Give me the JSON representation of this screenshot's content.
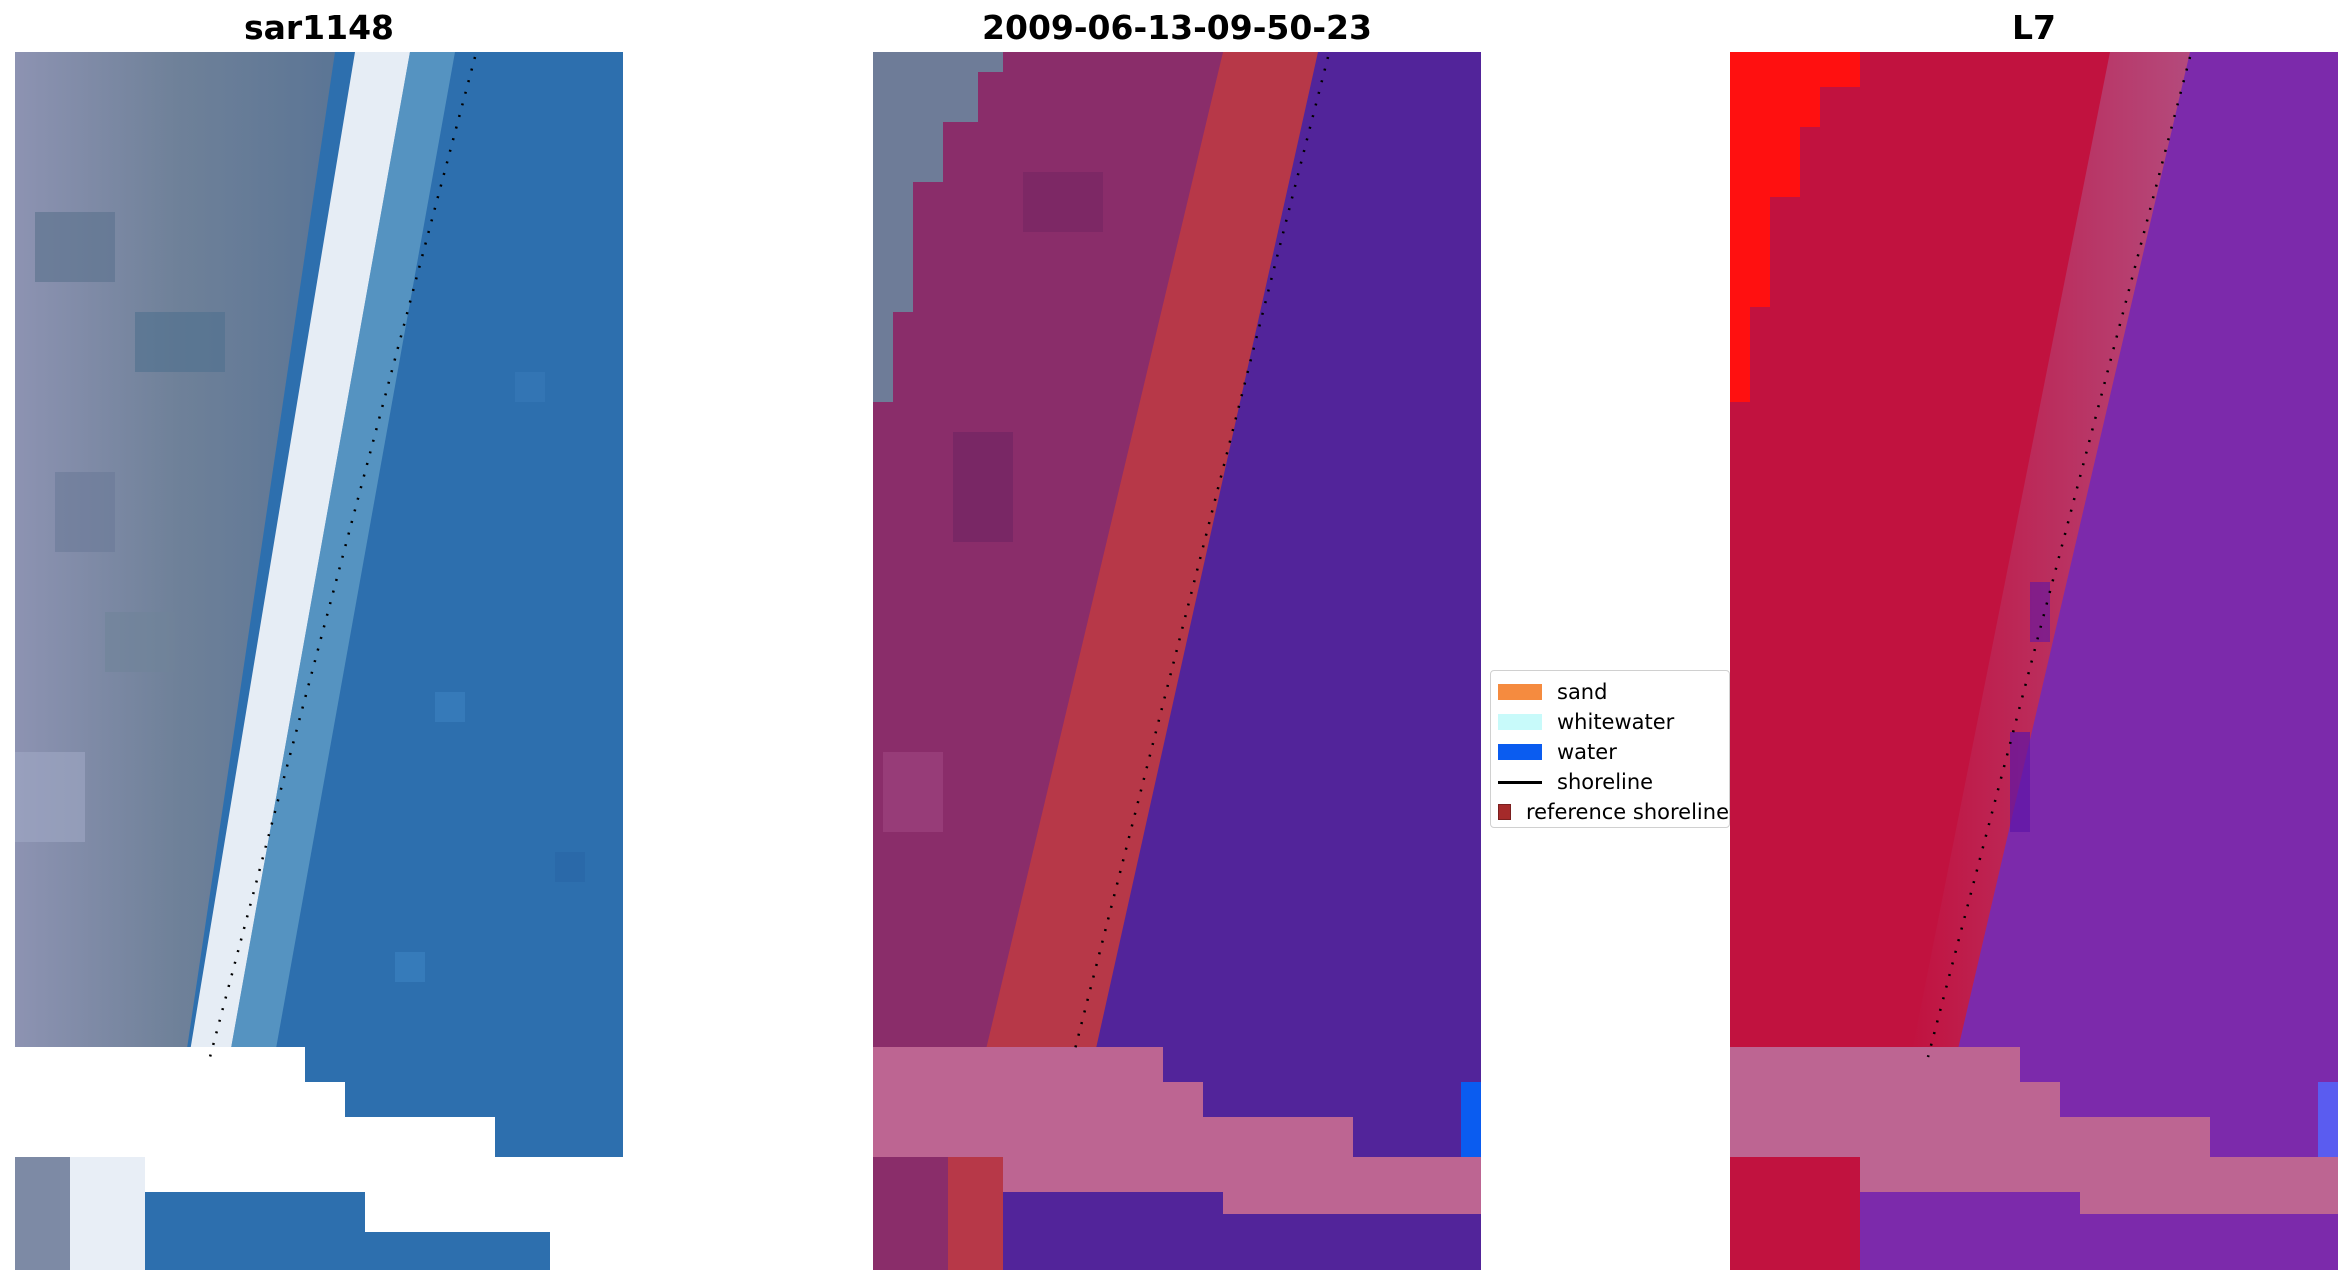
{
  "titles": {
    "left": "sar1148",
    "middle": "2009-06-13-09-50-23",
    "right": "L7"
  },
  "legend": {
    "items": [
      {
        "label": "sand",
        "color": "#f58b3f",
        "kind": "patch"
      },
      {
        "label": "whitewater",
        "color": "#c8fafa",
        "kind": "patch"
      },
      {
        "label": "water",
        "color": "#0a5cf0",
        "kind": "patch"
      },
      {
        "label": "shoreline",
        "color": "#000000",
        "kind": "line"
      },
      {
        "label": "reference shoreline",
        "color": "#a52a2a",
        "kind": "patch"
      }
    ]
  },
  "colors": {
    "water_rgb": "#2d6fae",
    "land_rgb": "#7d8aa5",
    "surf_rgb": "#e6edf5",
    "classified_water": "#52249a",
    "classified_land": "#8a2d6a",
    "reference_band": "#b73848",
    "nodata_band": "#bd6592",
    "mndwi_land": "#c1123f",
    "mndwi_water": "#7c2aab",
    "mndwi_hot": "#ff1010",
    "water_edge": "#0a5cf0"
  }
}
